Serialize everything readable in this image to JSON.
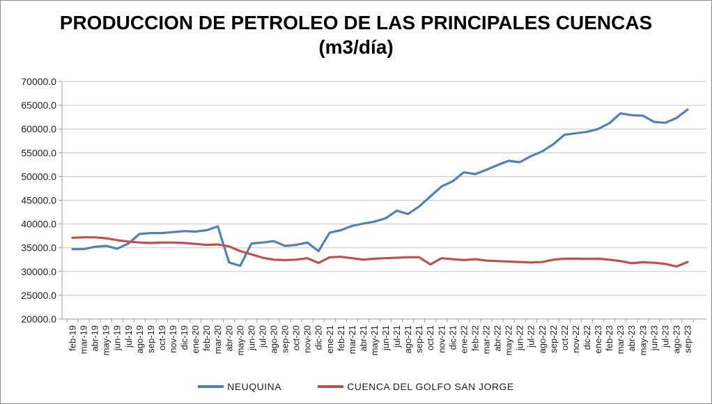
{
  "chart_data": {
    "type": "line",
    "title": "PRODUCCION DE PETROLEO DE LAS PRINCIPALES CUENCAS",
    "subtitle": "(m3/día)",
    "xlabel": "",
    "ylabel": "",
    "ylim": [
      20000,
      70000
    ],
    "ytick_step": 5000,
    "ytick_decimals": 1,
    "grid": true,
    "legend_position": "bottom",
    "categories": [
      "feb-19",
      "mar-19",
      "abr-19",
      "may-19",
      "jun-19",
      "jul-19",
      "ago-19",
      "sep-19",
      "oct-19",
      "nov-19",
      "dic-19",
      "ene-20",
      "feb-20",
      "mar-20",
      "abr-20",
      "may-20",
      "jun-20",
      "jul-20",
      "ago-20",
      "sep-20",
      "oct-20",
      "nov-20",
      "dic-20",
      "ene-21",
      "feb-21",
      "mar-21",
      "abr-21",
      "may-21",
      "jun-21",
      "jul-21",
      "ago-21",
      "sep-21",
      "oct-21",
      "nov-21",
      "dic-21",
      "ene-22",
      "feb-22",
      "mar-22",
      "abr-22",
      "may-22",
      "jun-22",
      "jul-22",
      "ago-22",
      "sep-22",
      "oct-22",
      "nov-22",
      "dic-22",
      "ene-23",
      "feb-23",
      "mar-23",
      "abr-23",
      "may-23",
      "jun-23",
      "jul-23",
      "ago-23",
      "sep-23"
    ],
    "series": [
      {
        "name": "NEUQUINA",
        "color": "#4F81BD",
        "values": [
          34700,
          34700,
          35200,
          35400,
          34800,
          35900,
          37900,
          38100,
          38100,
          38300,
          38500,
          38400,
          38700,
          39500,
          31900,
          31200,
          35900,
          36100,
          36400,
          35400,
          35600,
          36100,
          34300,
          38200,
          38700,
          39600,
          40100,
          40500,
          41200,
          42800,
          42100,
          43700,
          45800,
          47900,
          49000,
          50900,
          50500,
          51400,
          52400,
          53300,
          53000,
          54300,
          55300,
          56800,
          58800,
          59100,
          59400,
          60000,
          61200,
          63300,
          62900,
          62800,
          61500,
          61300,
          62300,
          64100
        ]
      },
      {
        "name": "CUENCA DEL GOLFO SAN JORGE",
        "color": "#C0504D",
        "values": [
          37100,
          37200,
          37200,
          37000,
          36600,
          36300,
          36100,
          36000,
          36100,
          36100,
          36000,
          35800,
          35600,
          35700,
          35300,
          34300,
          33600,
          32900,
          32500,
          32400,
          32500,
          32800,
          31800,
          33000,
          33100,
          32800,
          32500,
          32700,
          32800,
          32900,
          33000,
          33000,
          31500,
          32800,
          32600,
          32400,
          32600,
          32300,
          32200,
          32100,
          32000,
          31900,
          32000,
          32500,
          32700,
          32700,
          32650,
          32700,
          32500,
          32200,
          31750,
          31950,
          31850,
          31600,
          31050,
          32000
        ]
      }
    ],
    "styling": {
      "gridline_color": "#c6c6c6",
      "axis_color": "#9c9c9c",
      "background_color": "#ffffff",
      "line_width": 3.2
    }
  }
}
